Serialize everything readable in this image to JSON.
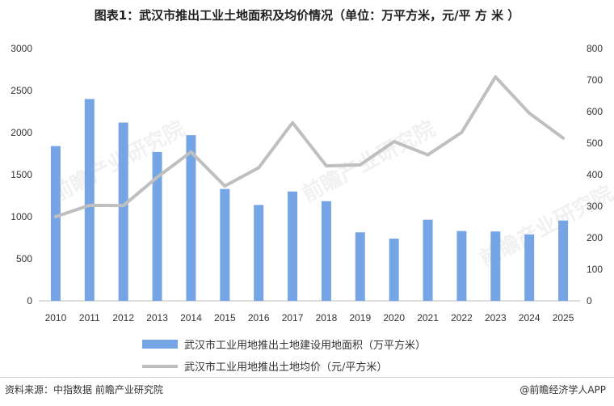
{
  "title": "图表1：武汉市推出工业土地面积及均价情况（单位：万平方米，元/平 方 米 ）",
  "watermark": "前瞻产业研究院",
  "footer": {
    "source": "资料来源：中指数据  前瞻产业研究院",
    "credit": "@前瞻经济学人APP"
  },
  "colors": {
    "bar": "#76a5e5",
    "line": "#bfbfbf",
    "grid": "#d9d9d9"
  },
  "chart_data": {
    "type": "bar",
    "categories": [
      "2010",
      "2011",
      "2012",
      "2013",
      "2014",
      "2015",
      "2016",
      "2017",
      "2018",
      "2019",
      "2020",
      "2021",
      "2022",
      "2023",
      "2024",
      "2025"
    ],
    "series": [
      {
        "name": "武汉市工业用地推出土地建设用地面积（万平方米）",
        "type": "bar",
        "axis": "left",
        "values": [
          1840,
          2400,
          2120,
          1770,
          1970,
          1330,
          1140,
          1300,
          1185,
          815,
          740,
          965,
          830,
          825,
          790,
          955
        ]
      },
      {
        "name": "武汉市工业用地推出土地均价（元/平方米）",
        "type": "line",
        "axis": "right",
        "values": [
          267,
          303,
          302,
          392,
          472,
          364,
          422,
          565,
          428,
          431,
          505,
          463,
          534,
          710,
          595,
          516
        ]
      }
    ],
    "ylim_left": [
      0,
      3000
    ],
    "yticks_left": [
      0,
      500,
      1000,
      1500,
      2000,
      2500,
      3000
    ],
    "ylim_right": [
      0,
      800
    ],
    "yticks_right": [
      0,
      100,
      200,
      300,
      400,
      500,
      600,
      700,
      800
    ],
    "grid": false,
    "legend": "bottom"
  }
}
